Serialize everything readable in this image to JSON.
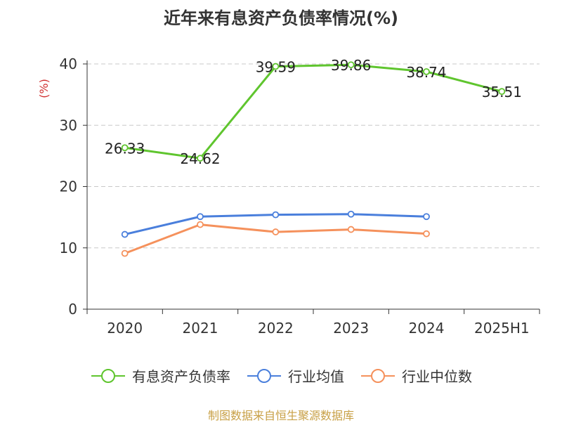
{
  "chart_data": {
    "type": "line",
    "title": "近年来有息资产负债率情况(%)",
    "ylabel": "(%)",
    "categories": [
      "2020",
      "2021",
      "2022",
      "2023",
      "2024",
      "2025H1"
    ],
    "y_ticks": [
      "0",
      "10",
      "20",
      "30",
      "40"
    ],
    "ylim": [
      0,
      40
    ],
    "grid": true,
    "legend_position": "bottom",
    "series": [
      {
        "name": "有息资产负债率",
        "color": "#5fc52e",
        "values": [
          26.33,
          24.62,
          39.59,
          39.86,
          38.74,
          35.51
        ],
        "labels": [
          "26.33",
          "24.62",
          "39.59",
          "39.86",
          "38.74",
          "35.51"
        ]
      },
      {
        "name": "行业均值",
        "color": "#4a7fdc",
        "values": [
          12.2,
          15.1,
          15.4,
          15.5,
          15.1,
          null
        ]
      },
      {
        "name": "行业中位数",
        "color": "#f5915c",
        "values": [
          9.1,
          13.8,
          12.6,
          13.0,
          12.3,
          null
        ]
      }
    ]
  },
  "source": {
    "text": "制图数据来自恒生聚源数据库",
    "color": "#c8a046"
  },
  "axis_label_color": "#d03030"
}
